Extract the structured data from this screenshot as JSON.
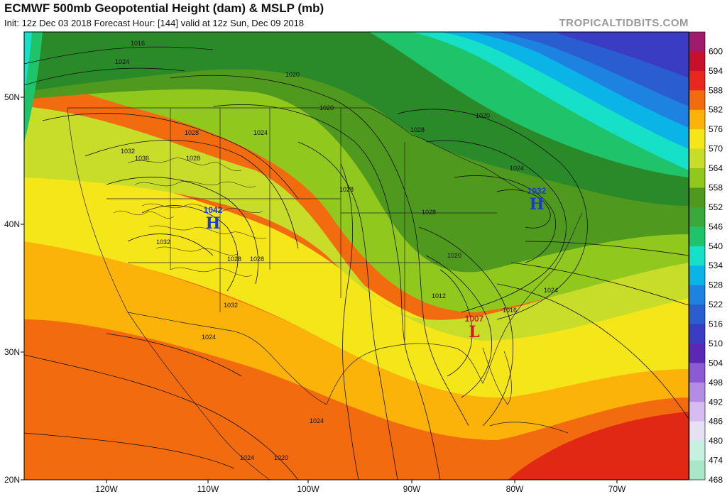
{
  "header": {
    "title": "ECMWF 500mb Geopotential Height (dam) & MSLP (mb)",
    "subtitle": "Init: 12z Dec 03 2018   Forecast Hour: [144]   valid at 12z Sun, Dec 09 2018",
    "brand": "TROPICALTIDBITS.COM"
  },
  "colorbar": {
    "levels": [
      "600",
      "594",
      "588",
      "582",
      "576",
      "570",
      "564",
      "558",
      "552",
      "546",
      "540",
      "534",
      "528",
      "522",
      "516",
      "510",
      "504",
      "498",
      "492",
      "486",
      "480",
      "474",
      "468"
    ],
    "colors": [
      "#a01a6e",
      "#c8102e",
      "#e8281e",
      "#f26b0f",
      "#fbb30a",
      "#f5e619",
      "#c8dc2a",
      "#90c81e",
      "#4f9a1e",
      "#3aa83a",
      "#1fc46a",
      "#16e0c8",
      "#0ab4e6",
      "#1e82e0",
      "#2a5ed0",
      "#3a3cc4",
      "#5a28b4",
      "#8c5ad2",
      "#b48ce6",
      "#d6bcf0",
      "#e6e0f4",
      "#c8f0e0",
      "#a8e8c8"
    ],
    "gradient_colors": {
      "top_ne": "#3a3cc4",
      "north": "#1e7a1e",
      "mid": "#b4dc28",
      "yellow": "#f0e614",
      "orange": "#fb8c0a",
      "red": "#e02814"
    }
  },
  "axes": {
    "longitudes": [
      "120W",
      "110W",
      "100W",
      "90W",
      "80W",
      "70W"
    ],
    "latitudes": [
      "50N",
      "40N",
      "30N",
      "20N"
    ]
  },
  "systems": [
    {
      "type": "H",
      "value": "1042",
      "color": "#1a3ad0"
    },
    {
      "type": "H",
      "value": "1032",
      "color": "#1a3ad0"
    },
    {
      "type": "L",
      "value": "1007",
      "color": "#d01a1a"
    }
  ],
  "isobar_labels": [
    "1016",
    "1024",
    "1020",
    "1020",
    "1028",
    "1024",
    "1032",
    "1036",
    "1028",
    "1020",
    "1028",
    "1024",
    "1028",
    "1028",
    "1020",
    "1028",
    "1032",
    "1032",
    "1028",
    "1024",
    "1012",
    "1016",
    "1024",
    "1024",
    "1020",
    "1024"
  ]
}
